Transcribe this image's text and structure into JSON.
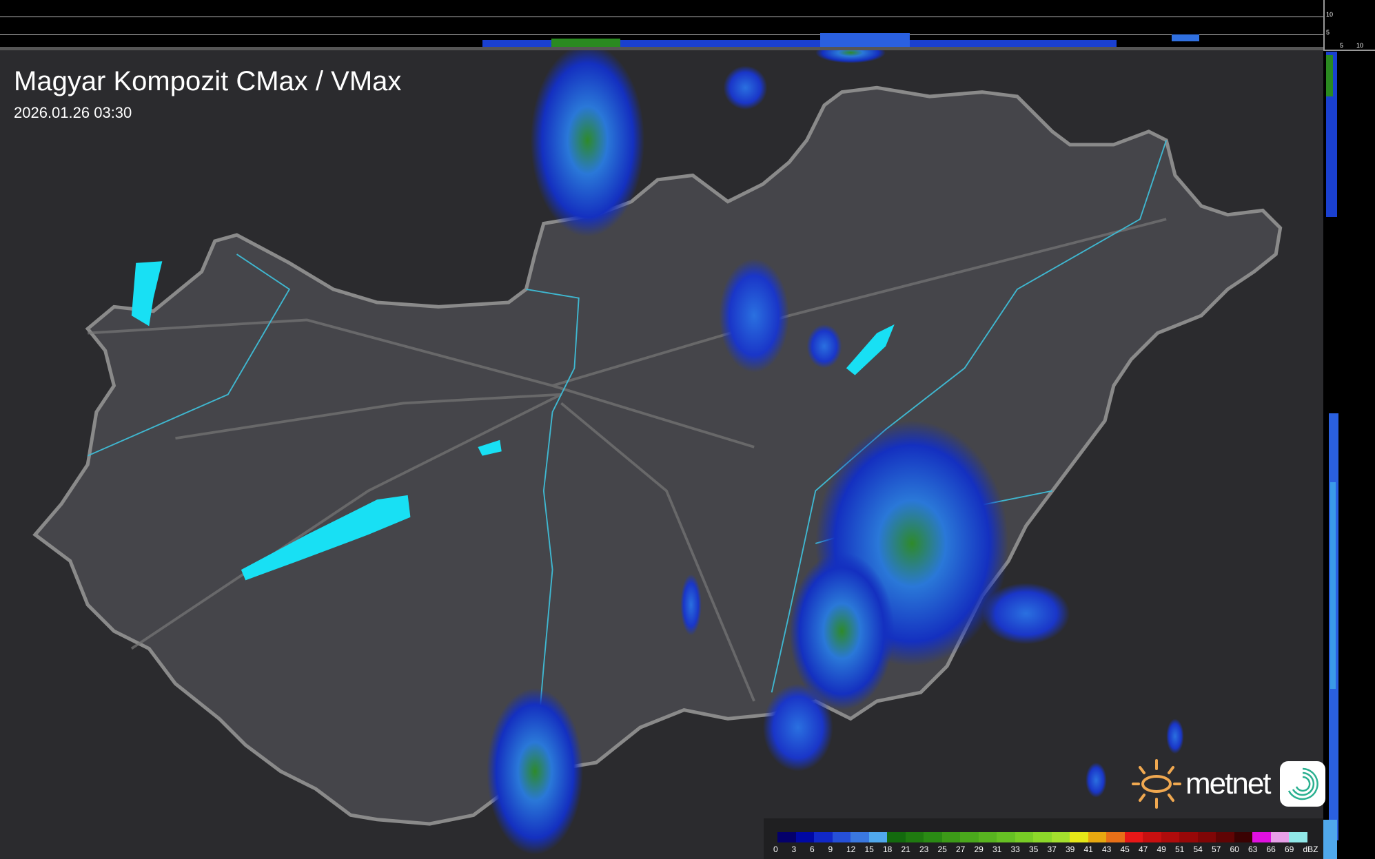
{
  "header": {
    "title": "Magyar Kompozit CMax / VMax",
    "timestamp": "2026.01.26 03:30"
  },
  "side_profile_scale": {
    "top_ticks": [
      "10",
      "5"
    ],
    "right_ticks": [
      "5",
      "10"
    ]
  },
  "legend": {
    "unit": "dBZ",
    "labels": [
      "0",
      "3",
      "6",
      "9",
      "12",
      "15",
      "18",
      "21",
      "23",
      "25",
      "27",
      "29",
      "31",
      "33",
      "35",
      "37",
      "39",
      "41",
      "43",
      "45",
      "47",
      "49",
      "51",
      "54",
      "57",
      "60",
      "63",
      "66",
      "69"
    ],
    "colors": [
      "#04006b",
      "#0008a4",
      "#1128c8",
      "#2650d8",
      "#3a78e0",
      "#50a8ec",
      "#136a0e",
      "#1f7a10",
      "#2a8a14",
      "#3c9a18",
      "#4aa81c",
      "#58b420",
      "#66c024",
      "#78cc26",
      "#8cd82a",
      "#a4e02e",
      "#e6e818",
      "#e8a810",
      "#e87018",
      "#e81818",
      "#c81010",
      "#b00c0c",
      "#980808",
      "#800606",
      "#600404",
      "#3a0202",
      "#e010e0",
      "#e8a0e8",
      "#90e8e8"
    ],
    "palette_note": ""
  },
  "logo": {
    "brand": "metnet",
    "sun_color": "#f0a850",
    "app_color": "#2ab090"
  },
  "map_colors": {
    "land": "#3a3a3e",
    "border": "#8a8a8a",
    "rivers": "#3fb7d0",
    "lakes": "#18e0f4"
  }
}
